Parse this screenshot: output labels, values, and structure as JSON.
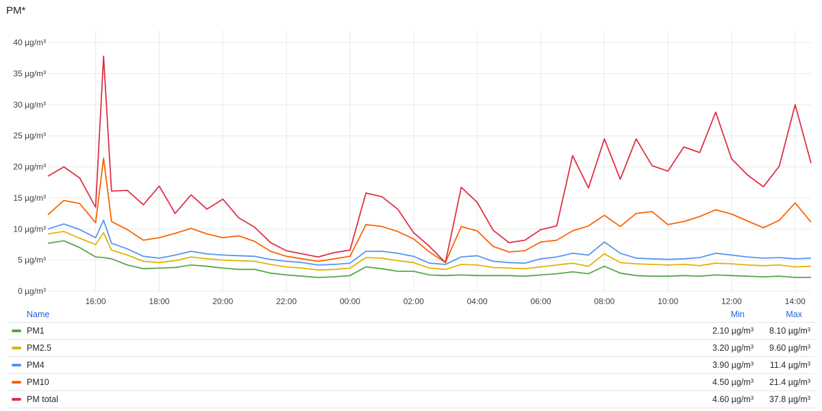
{
  "panel": {
    "title": "PM*"
  },
  "legend": {
    "header": {
      "name": "Name",
      "min": "Min",
      "max": "Max"
    },
    "rows": [
      {
        "name": "PM1",
        "color": "#56a64b",
        "min": "2.10 µg/m³",
        "max": "8.10 µg/m³"
      },
      {
        "name": "PM2.5",
        "color": "#e0b400",
        "min": "3.20 µg/m³",
        "max": "9.60 µg/m³"
      },
      {
        "name": "PM4",
        "color": "#5794f2",
        "min": "3.90 µg/m³",
        "max": "11.4 µg/m³"
      },
      {
        "name": "PM10",
        "color": "#fa6400",
        "min": "4.50 µg/m³",
        "max": "21.4 µg/m³"
      },
      {
        "name": "PM total",
        "color": "#e02f44",
        "min": "4.60 µg/m³",
        "max": "37.8 µg/m³"
      }
    ]
  },
  "chart_data": {
    "type": "line",
    "title": "PM*",
    "xlabel": "",
    "ylabel": "",
    "xlim": [
      "14:30",
      "14:30"
    ],
    "ylim": [
      0,
      42
    ],
    "grid": true,
    "legend_placement": "bottom",
    "x_ticks": [
      "16:00",
      "18:00",
      "20:00",
      "22:00",
      "00:00",
      "02:00",
      "04:00",
      "06:00",
      "08:00",
      "10:00",
      "12:00",
      "14:00"
    ],
    "y_ticks": [
      "0 µg/m³",
      "5 µg/m³",
      "10 µg/m³",
      "15 µg/m³",
      "20 µg/m³",
      "25 µg/m³",
      "30 µg/m³",
      "35 µg/m³",
      "40 µg/m³"
    ],
    "x": [
      "14:30",
      "15:00",
      "15:30",
      "16:00",
      "16:15",
      "16:30",
      "17:00",
      "17:30",
      "18:00",
      "18:30",
      "19:00",
      "19:30",
      "20:00",
      "20:30",
      "21:00",
      "21:30",
      "22:00",
      "22:30",
      "23:00",
      "23:30",
      "00:00",
      "00:30",
      "01:00",
      "01:30",
      "02:00",
      "02:30",
      "03:00",
      "03:30",
      "04:00",
      "04:30",
      "05:00",
      "05:30",
      "06:00",
      "06:30",
      "07:00",
      "07:30",
      "08:00",
      "08:30",
      "09:00",
      "09:30",
      "10:00",
      "10:30",
      "11:00",
      "11:30",
      "12:00",
      "12:30",
      "13:00",
      "13:30",
      "14:00",
      "14:30"
    ],
    "series": [
      {
        "name": "PM1",
        "color": "#56a64b",
        "values": [
          7.7,
          8.1,
          7.0,
          5.5,
          5.4,
          5.2,
          4.2,
          3.6,
          3.7,
          3.8,
          4.2,
          4.0,
          3.7,
          3.5,
          3.5,
          2.9,
          2.6,
          2.4,
          2.2,
          2.3,
          2.5,
          3.9,
          3.6,
          3.2,
          3.2,
          2.6,
          2.5,
          2.6,
          2.5,
          2.5,
          2.5,
          2.4,
          2.6,
          2.8,
          3.1,
          2.8,
          4.0,
          2.9,
          2.5,
          2.4,
          2.4,
          2.5,
          2.4,
          2.6,
          2.5,
          2.4,
          2.3,
          2.4,
          2.2,
          2.2
        ]
      },
      {
        "name": "PM2.5",
        "color": "#e0b400",
        "values": [
          9.2,
          9.6,
          8.5,
          7.5,
          9.4,
          6.6,
          5.8,
          4.8,
          4.6,
          4.9,
          5.5,
          5.2,
          5.0,
          4.9,
          4.8,
          4.3,
          3.9,
          3.7,
          3.4,
          3.5,
          3.7,
          5.4,
          5.3,
          4.9,
          4.6,
          3.7,
          3.5,
          4.3,
          4.2,
          3.8,
          3.7,
          3.6,
          3.9,
          4.2,
          4.5,
          4.0,
          6.0,
          4.6,
          4.4,
          4.3,
          4.2,
          4.3,
          4.1,
          4.5,
          4.4,
          4.2,
          4.1,
          4.2,
          3.9,
          4.0
        ]
      },
      {
        "name": "PM4",
        "color": "#5794f2",
        "values": [
          10.0,
          10.8,
          9.9,
          8.6,
          11.4,
          7.7,
          6.8,
          5.6,
          5.3,
          5.8,
          6.4,
          6.0,
          5.8,
          5.7,
          5.6,
          5.1,
          4.8,
          4.6,
          4.2,
          4.3,
          4.5,
          6.4,
          6.4,
          6.1,
          5.6,
          4.5,
          4.3,
          5.5,
          5.7,
          4.8,
          4.6,
          4.5,
          5.2,
          5.5,
          6.1,
          5.8,
          7.9,
          6.1,
          5.3,
          5.2,
          5.1,
          5.2,
          5.4,
          6.1,
          5.8,
          5.5,
          5.3,
          5.4,
          5.2,
          5.3
        ]
      },
      {
        "name": "PM10",
        "color": "#fa6400",
        "values": [
          12.3,
          14.6,
          14.1,
          11.0,
          21.4,
          11.2,
          9.9,
          8.2,
          8.6,
          9.3,
          10.1,
          9.2,
          8.6,
          8.9,
          8.0,
          6.4,
          5.6,
          5.2,
          4.8,
          5.2,
          5.6,
          10.7,
          10.4,
          9.6,
          8.4,
          6.3,
          4.6,
          10.4,
          9.7,
          7.2,
          6.3,
          6.5,
          7.9,
          8.2,
          9.7,
          10.5,
          12.2,
          10.4,
          12.5,
          12.8,
          10.7,
          11.2,
          12.0,
          13.1,
          12.4,
          11.3,
          10.2,
          11.4,
          14.2,
          11.1
        ]
      },
      {
        "name": "PM total",
        "color": "#e02f44",
        "values": [
          18.5,
          20.0,
          18.2,
          13.5,
          37.8,
          16.1,
          16.2,
          13.9,
          16.9,
          12.5,
          15.5,
          13.2,
          14.8,
          11.8,
          10.3,
          7.8,
          6.5,
          6.0,
          5.5,
          6.2,
          6.6,
          15.8,
          15.2,
          13.2,
          9.4,
          7.2,
          4.6,
          16.7,
          14.3,
          9.8,
          7.8,
          8.2,
          9.9,
          10.5,
          21.8,
          16.6,
          24.5,
          18.0,
          24.5,
          20.2,
          19.3,
          23.2,
          22.3,
          28.8,
          21.3,
          18.7,
          16.8,
          20.1,
          30.0,
          20.6
        ]
      }
    ]
  }
}
